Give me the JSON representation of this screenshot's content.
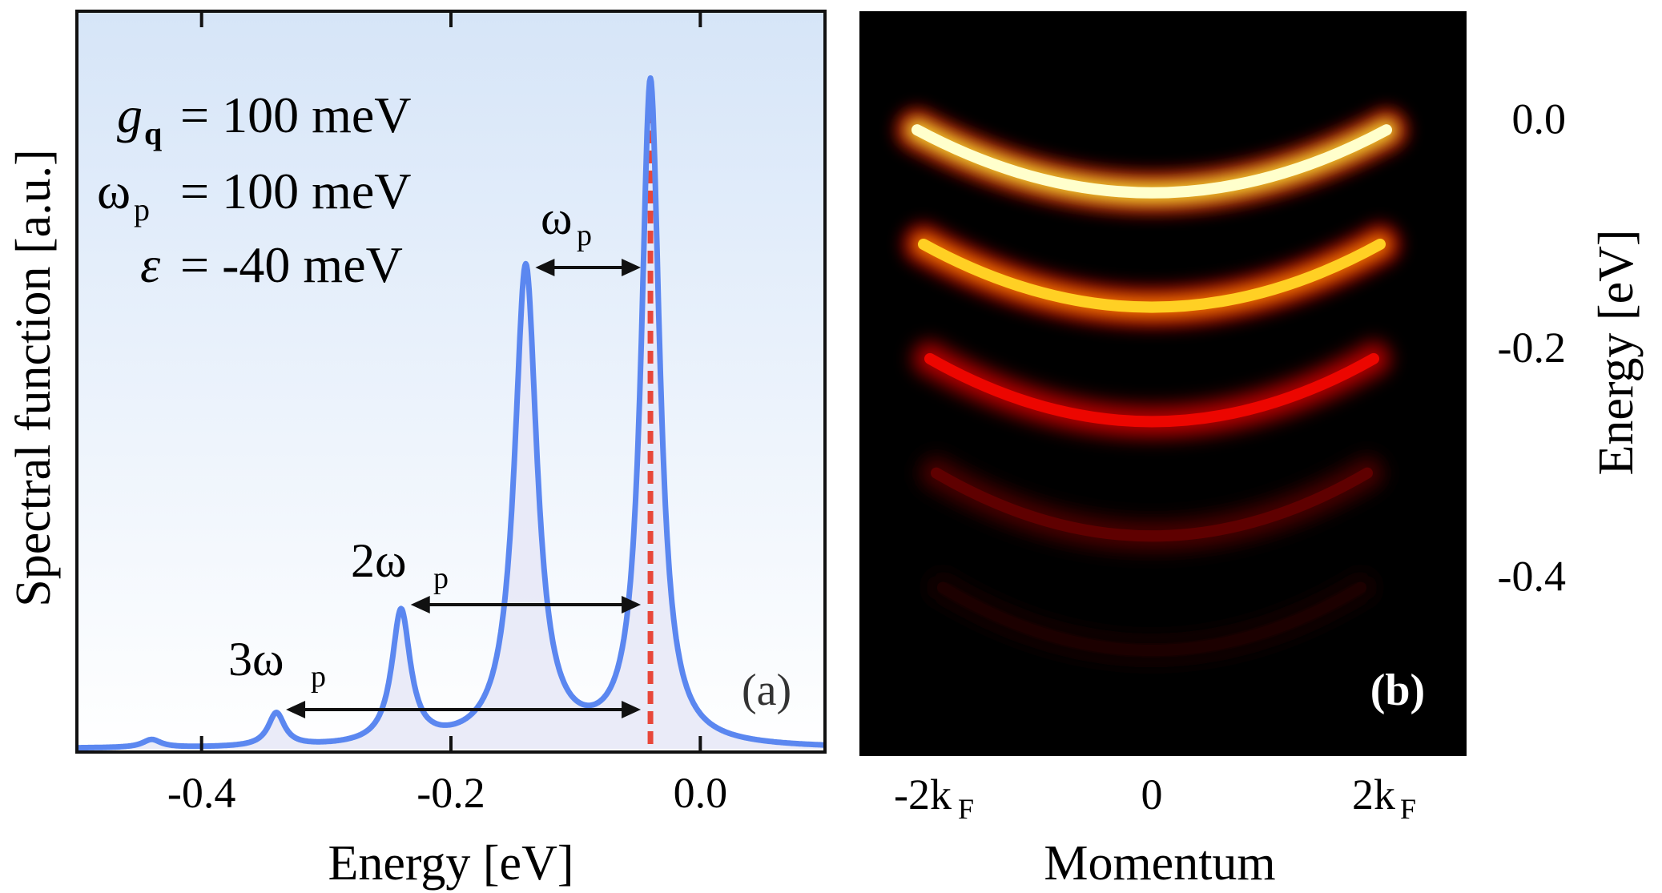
{
  "chart_data": [
    {
      "panel": "(a)",
      "type": "line",
      "xlabel": "Energy [eV]",
      "ylabel": "Spectral function [a.u.]",
      "xlim": [
        -0.5,
        0.1
      ],
      "ylim": [
        0,
        1.0
      ],
      "xticks": [
        -0.4,
        -0.2,
        0.0
      ],
      "xtick_labels": [
        "-0.4",
        "-0.2",
        "0.0"
      ],
      "series": [
        {
          "name": "spectral function",
          "peaks": [
            {
              "energy": -0.04,
              "height": 1.0,
              "width": 0.009
            },
            {
              "energy": -0.14,
              "height": 0.72,
              "width": 0.011
            },
            {
              "energy": -0.24,
              "height": 0.2,
              "width": 0.009
            },
            {
              "energy": -0.34,
              "height": 0.05,
              "width": 0.008
            },
            {
              "energy": -0.44,
              "height": 0.012,
              "width": 0.009
            }
          ]
        }
      ],
      "marker_line": {
        "energy": -0.04,
        "color": "#e8473a",
        "style": "dashed"
      },
      "param_labels": [
        "= 100 meV",
        "= 100 meV",
        "= -40 meV"
      ],
      "param_symbols": {
        "g": "g",
        "g_sub": "q",
        "omega": "ω",
        "omega_sub": "p",
        "epsilon": "ε"
      },
      "annotations": {
        "omega1": {
          "label": "ω",
          "sub": "p",
          "from": -0.14,
          "to": -0.04
        },
        "omega2": {
          "label": "2ω",
          "sub": "p",
          "from": -0.24,
          "to": -0.04
        },
        "omega3": {
          "label": "3ω",
          "sub": "p",
          "from": -0.34,
          "to": -0.04
        }
      },
      "panel_label": "(a)",
      "colors": {
        "line": "#5b87f0",
        "fill": "#e6e8f7",
        "bg_top": "#d6e5f8",
        "bg_bottom": "#ffffff"
      }
    },
    {
      "panel": "(b)",
      "type": "heatmap",
      "xlabel": "Momentum",
      "ylabel": "Energy [eV]",
      "xticks": [
        "-2k",
        "0",
        "2k"
      ],
      "xtick_sub": "F",
      "ylim": [
        -0.55,
        0.1
      ],
      "yticks": [
        0.0,
        -0.2,
        -0.4
      ],
      "ytick_labels": [
        "0.0",
        "-0.2",
        "-0.4"
      ],
      "bands": [
        {
          "energy_center": -0.04,
          "intensity": 1.0
        },
        {
          "energy_center": -0.14,
          "intensity": 0.78
        },
        {
          "energy_center": -0.24,
          "intensity": 0.42
        },
        {
          "energy_center": -0.34,
          "intensity": 0.17
        },
        {
          "energy_center": -0.44,
          "intensity": 0.05
        }
      ],
      "band_dispersion_eV": 0.055,
      "panel_label": "(b)",
      "colormap": "hot"
    }
  ]
}
